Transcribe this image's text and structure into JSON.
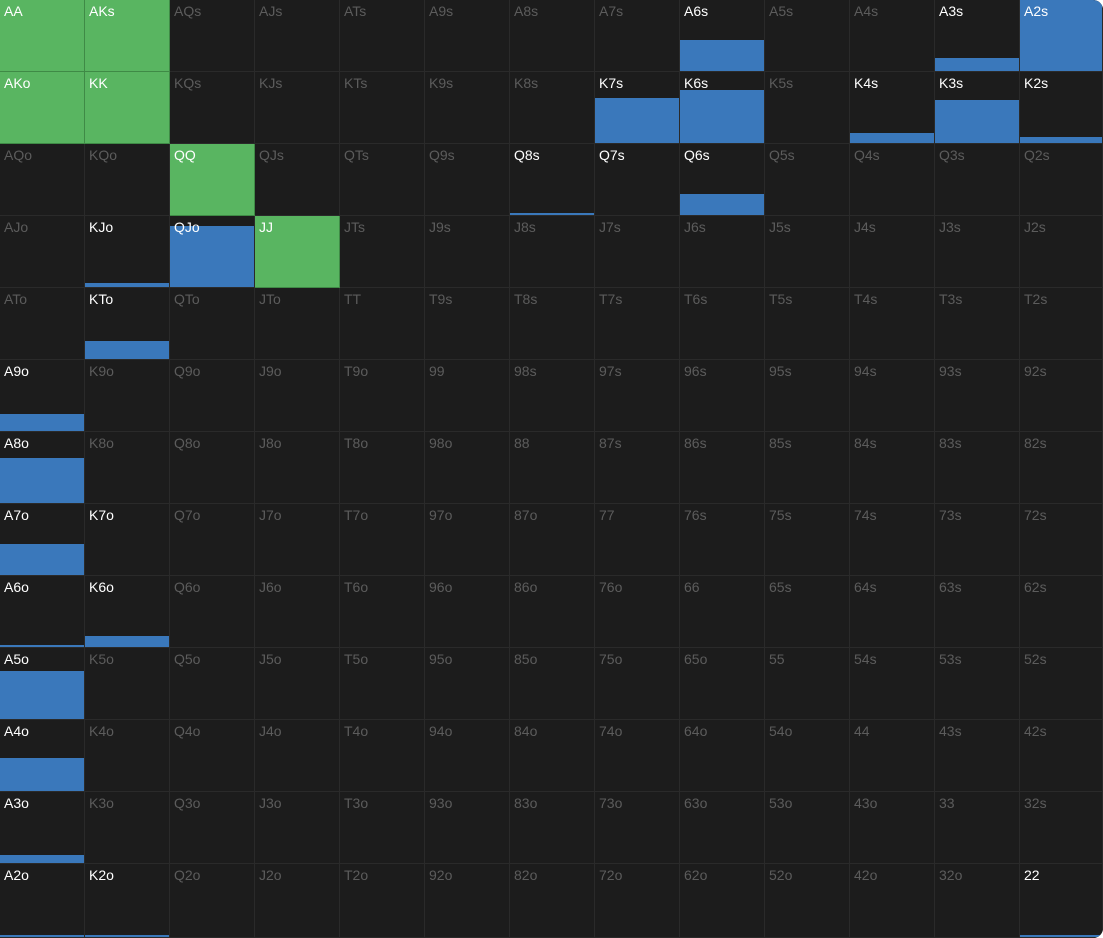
{
  "colors": {
    "background": "#1c1c1c",
    "raise": "#59b561",
    "call": "#3a78bb",
    "label_active": "#ffffff",
    "label_inactive": "#5c5c5c"
  },
  "hand_grid": {
    "rows": [
      [
        {
          "hand": "AA",
          "action": "raise",
          "fill": 1.0
        },
        {
          "hand": "AKs",
          "action": "raise",
          "fill": 1.0
        },
        {
          "hand": "AQs",
          "action": "none",
          "fill": 0
        },
        {
          "hand": "AJs",
          "action": "none",
          "fill": 0
        },
        {
          "hand": "ATs",
          "action": "none",
          "fill": 0
        },
        {
          "hand": "A9s",
          "action": "none",
          "fill": 0
        },
        {
          "hand": "A8s",
          "action": "none",
          "fill": 0
        },
        {
          "hand": "A7s",
          "action": "none",
          "fill": 0
        },
        {
          "hand": "A6s",
          "action": "call",
          "fill": 0.43
        },
        {
          "hand": "A5s",
          "action": "none",
          "fill": 0
        },
        {
          "hand": "A4s",
          "action": "none",
          "fill": 0
        },
        {
          "hand": "A3s",
          "action": "call",
          "fill": 0.18
        },
        {
          "hand": "A2s",
          "action": "call",
          "fill": 1.0
        }
      ],
      [
        {
          "hand": "AKo",
          "action": "raise",
          "fill": 1.0
        },
        {
          "hand": "KK",
          "action": "raise",
          "fill": 1.0
        },
        {
          "hand": "KQs",
          "action": "none",
          "fill": 0
        },
        {
          "hand": "KJs",
          "action": "none",
          "fill": 0
        },
        {
          "hand": "KTs",
          "action": "none",
          "fill": 0
        },
        {
          "hand": "K9s",
          "action": "none",
          "fill": 0
        },
        {
          "hand": "K8s",
          "action": "none",
          "fill": 0
        },
        {
          "hand": "K7s",
          "action": "call",
          "fill": 0.64
        },
        {
          "hand": "K6s",
          "action": "call",
          "fill": 0.74
        },
        {
          "hand": "K5s",
          "action": "none",
          "fill": 0
        },
        {
          "hand": "K4s",
          "action": "call",
          "fill": 0.14
        },
        {
          "hand": "K3s",
          "action": "call",
          "fill": 0.61
        },
        {
          "hand": "K2s",
          "action": "call",
          "fill": 0.08
        }
      ],
      [
        {
          "hand": "AQo",
          "action": "none",
          "fill": 0
        },
        {
          "hand": "KQo",
          "action": "none",
          "fill": 0
        },
        {
          "hand": "QQ",
          "action": "raise",
          "fill": 1.0
        },
        {
          "hand": "QJs",
          "action": "none",
          "fill": 0
        },
        {
          "hand": "QTs",
          "action": "none",
          "fill": 0
        },
        {
          "hand": "Q9s",
          "action": "none",
          "fill": 0
        },
        {
          "hand": "Q8s",
          "action": "call",
          "fill": 0.03
        },
        {
          "hand": "Q7s",
          "action": "call",
          "fill": 0
        },
        {
          "hand": "Q6s",
          "action": "call",
          "fill": 0.29
        },
        {
          "hand": "Q5s",
          "action": "none",
          "fill": 0
        },
        {
          "hand": "Q4s",
          "action": "none",
          "fill": 0
        },
        {
          "hand": "Q3s",
          "action": "none",
          "fill": 0
        },
        {
          "hand": "Q2s",
          "action": "none",
          "fill": 0
        }
      ],
      [
        {
          "hand": "AJo",
          "action": "none",
          "fill": 0
        },
        {
          "hand": "KJo",
          "action": "call",
          "fill": 0.05
        },
        {
          "hand": "QJo",
          "action": "call",
          "fill": 0.86
        },
        {
          "hand": "JJ",
          "action": "raise",
          "fill": 1.0
        },
        {
          "hand": "JTs",
          "action": "none",
          "fill": 0
        },
        {
          "hand": "J9s",
          "action": "none",
          "fill": 0
        },
        {
          "hand": "J8s",
          "action": "none",
          "fill": 0
        },
        {
          "hand": "J7s",
          "action": "none",
          "fill": 0
        },
        {
          "hand": "J6s",
          "action": "none",
          "fill": 0
        },
        {
          "hand": "J5s",
          "action": "none",
          "fill": 0
        },
        {
          "hand": "J4s",
          "action": "none",
          "fill": 0
        },
        {
          "hand": "J3s",
          "action": "none",
          "fill": 0
        },
        {
          "hand": "J2s",
          "action": "none",
          "fill": 0
        }
      ],
      [
        {
          "hand": "ATo",
          "action": "none",
          "fill": 0
        },
        {
          "hand": "KTo",
          "action": "call",
          "fill": 0.26
        },
        {
          "hand": "QTo",
          "action": "none",
          "fill": 0
        },
        {
          "hand": "JTo",
          "action": "none",
          "fill": 0
        },
        {
          "hand": "TT",
          "action": "none",
          "fill": 0
        },
        {
          "hand": "T9s",
          "action": "none",
          "fill": 0
        },
        {
          "hand": "T8s",
          "action": "none",
          "fill": 0
        },
        {
          "hand": "T7s",
          "action": "none",
          "fill": 0
        },
        {
          "hand": "T6s",
          "action": "none",
          "fill": 0
        },
        {
          "hand": "T5s",
          "action": "none",
          "fill": 0
        },
        {
          "hand": "T4s",
          "action": "none",
          "fill": 0
        },
        {
          "hand": "T3s",
          "action": "none",
          "fill": 0
        },
        {
          "hand": "T2s",
          "action": "none",
          "fill": 0
        }
      ],
      [
        {
          "hand": "A9o",
          "action": "call",
          "fill": 0.24
        },
        {
          "hand": "K9o",
          "action": "none",
          "fill": 0
        },
        {
          "hand": "Q9o",
          "action": "none",
          "fill": 0
        },
        {
          "hand": "J9o",
          "action": "none",
          "fill": 0
        },
        {
          "hand": "T9o",
          "action": "none",
          "fill": 0
        },
        {
          "hand": "99",
          "action": "none",
          "fill": 0
        },
        {
          "hand": "98s",
          "action": "none",
          "fill": 0
        },
        {
          "hand": "97s",
          "action": "none",
          "fill": 0
        },
        {
          "hand": "96s",
          "action": "none",
          "fill": 0
        },
        {
          "hand": "95s",
          "action": "none",
          "fill": 0
        },
        {
          "hand": "94s",
          "action": "none",
          "fill": 0
        },
        {
          "hand": "93s",
          "action": "none",
          "fill": 0
        },
        {
          "hand": "92s",
          "action": "none",
          "fill": 0
        }
      ],
      [
        {
          "hand": "A8o",
          "action": "call",
          "fill": 0.63
        },
        {
          "hand": "K8o",
          "action": "none",
          "fill": 0
        },
        {
          "hand": "Q8o",
          "action": "none",
          "fill": 0
        },
        {
          "hand": "J8o",
          "action": "none",
          "fill": 0
        },
        {
          "hand": "T8o",
          "action": "none",
          "fill": 0
        },
        {
          "hand": "98o",
          "action": "none",
          "fill": 0
        },
        {
          "hand": "88",
          "action": "none",
          "fill": 0
        },
        {
          "hand": "87s",
          "action": "none",
          "fill": 0
        },
        {
          "hand": "86s",
          "action": "none",
          "fill": 0
        },
        {
          "hand": "85s",
          "action": "none",
          "fill": 0
        },
        {
          "hand": "84s",
          "action": "none",
          "fill": 0
        },
        {
          "hand": "83s",
          "action": "none",
          "fill": 0
        },
        {
          "hand": "82s",
          "action": "none",
          "fill": 0
        }
      ],
      [
        {
          "hand": "A7o",
          "action": "call",
          "fill": 0.43
        },
        {
          "hand": "K7o",
          "action": "call",
          "fill": 0
        },
        {
          "hand": "Q7o",
          "action": "none",
          "fill": 0
        },
        {
          "hand": "J7o",
          "action": "none",
          "fill": 0
        },
        {
          "hand": "T7o",
          "action": "none",
          "fill": 0
        },
        {
          "hand": "97o",
          "action": "none",
          "fill": 0
        },
        {
          "hand": "87o",
          "action": "none",
          "fill": 0
        },
        {
          "hand": "77",
          "action": "none",
          "fill": 0
        },
        {
          "hand": "76s",
          "action": "none",
          "fill": 0
        },
        {
          "hand": "75s",
          "action": "none",
          "fill": 0
        },
        {
          "hand": "74s",
          "action": "none",
          "fill": 0
        },
        {
          "hand": "73s",
          "action": "none",
          "fill": 0
        },
        {
          "hand": "72s",
          "action": "none",
          "fill": 0
        }
      ],
      [
        {
          "hand": "A6o",
          "action": "call",
          "fill": 0.03
        },
        {
          "hand": "K6o",
          "action": "call",
          "fill": 0.15
        },
        {
          "hand": "Q6o",
          "action": "none",
          "fill": 0
        },
        {
          "hand": "J6o",
          "action": "none",
          "fill": 0
        },
        {
          "hand": "T6o",
          "action": "none",
          "fill": 0
        },
        {
          "hand": "96o",
          "action": "none",
          "fill": 0
        },
        {
          "hand": "86o",
          "action": "none",
          "fill": 0
        },
        {
          "hand": "76o",
          "action": "none",
          "fill": 0
        },
        {
          "hand": "66",
          "action": "none",
          "fill": 0
        },
        {
          "hand": "65s",
          "action": "none",
          "fill": 0
        },
        {
          "hand": "64s",
          "action": "none",
          "fill": 0
        },
        {
          "hand": "63s",
          "action": "none",
          "fill": 0
        },
        {
          "hand": "62s",
          "action": "none",
          "fill": 0
        }
      ],
      [
        {
          "hand": "A5o",
          "action": "call",
          "fill": 0.68
        },
        {
          "hand": "K5o",
          "action": "none",
          "fill": 0
        },
        {
          "hand": "Q5o",
          "action": "none",
          "fill": 0
        },
        {
          "hand": "J5o",
          "action": "none",
          "fill": 0
        },
        {
          "hand": "T5o",
          "action": "none",
          "fill": 0
        },
        {
          "hand": "95o",
          "action": "none",
          "fill": 0
        },
        {
          "hand": "85o",
          "action": "none",
          "fill": 0
        },
        {
          "hand": "75o",
          "action": "none",
          "fill": 0
        },
        {
          "hand": "65o",
          "action": "none",
          "fill": 0
        },
        {
          "hand": "55",
          "action": "none",
          "fill": 0
        },
        {
          "hand": "54s",
          "action": "none",
          "fill": 0
        },
        {
          "hand": "53s",
          "action": "none",
          "fill": 0
        },
        {
          "hand": "52s",
          "action": "none",
          "fill": 0
        }
      ],
      [
        {
          "hand": "A4o",
          "action": "call",
          "fill": 0.46
        },
        {
          "hand": "K4o",
          "action": "none",
          "fill": 0
        },
        {
          "hand": "Q4o",
          "action": "none",
          "fill": 0
        },
        {
          "hand": "J4o",
          "action": "none",
          "fill": 0
        },
        {
          "hand": "T4o",
          "action": "none",
          "fill": 0
        },
        {
          "hand": "94o",
          "action": "none",
          "fill": 0
        },
        {
          "hand": "84o",
          "action": "none",
          "fill": 0
        },
        {
          "hand": "74o",
          "action": "none",
          "fill": 0
        },
        {
          "hand": "64o",
          "action": "none",
          "fill": 0
        },
        {
          "hand": "54o",
          "action": "none",
          "fill": 0
        },
        {
          "hand": "44",
          "action": "none",
          "fill": 0
        },
        {
          "hand": "43s",
          "action": "none",
          "fill": 0
        },
        {
          "hand": "42s",
          "action": "none",
          "fill": 0
        }
      ],
      [
        {
          "hand": "A3o",
          "action": "call",
          "fill": 0.11
        },
        {
          "hand": "K3o",
          "action": "none",
          "fill": 0
        },
        {
          "hand": "Q3o",
          "action": "none",
          "fill": 0
        },
        {
          "hand": "J3o",
          "action": "none",
          "fill": 0
        },
        {
          "hand": "T3o",
          "action": "none",
          "fill": 0
        },
        {
          "hand": "93o",
          "action": "none",
          "fill": 0
        },
        {
          "hand": "83o",
          "action": "none",
          "fill": 0
        },
        {
          "hand": "73o",
          "action": "none",
          "fill": 0
        },
        {
          "hand": "63o",
          "action": "none",
          "fill": 0
        },
        {
          "hand": "53o",
          "action": "none",
          "fill": 0
        },
        {
          "hand": "43o",
          "action": "none",
          "fill": 0
        },
        {
          "hand": "33",
          "action": "none",
          "fill": 0
        },
        {
          "hand": "32s",
          "action": "none",
          "fill": 0
        }
      ],
      [
        {
          "hand": "A2o",
          "action": "call",
          "fill": 0.03
        },
        {
          "hand": "K2o",
          "action": "call",
          "fill": 0.03
        },
        {
          "hand": "Q2o",
          "action": "none",
          "fill": 0
        },
        {
          "hand": "J2o",
          "action": "none",
          "fill": 0
        },
        {
          "hand": "T2o",
          "action": "none",
          "fill": 0
        },
        {
          "hand": "92o",
          "action": "none",
          "fill": 0
        },
        {
          "hand": "82o",
          "action": "none",
          "fill": 0
        },
        {
          "hand": "72o",
          "action": "none",
          "fill": 0
        },
        {
          "hand": "62o",
          "action": "none",
          "fill": 0
        },
        {
          "hand": "52o",
          "action": "none",
          "fill": 0
        },
        {
          "hand": "42o",
          "action": "none",
          "fill": 0
        },
        {
          "hand": "32o",
          "action": "none",
          "fill": 0
        },
        {
          "hand": "22",
          "action": "call",
          "fill": 0.03
        }
      ]
    ]
  }
}
